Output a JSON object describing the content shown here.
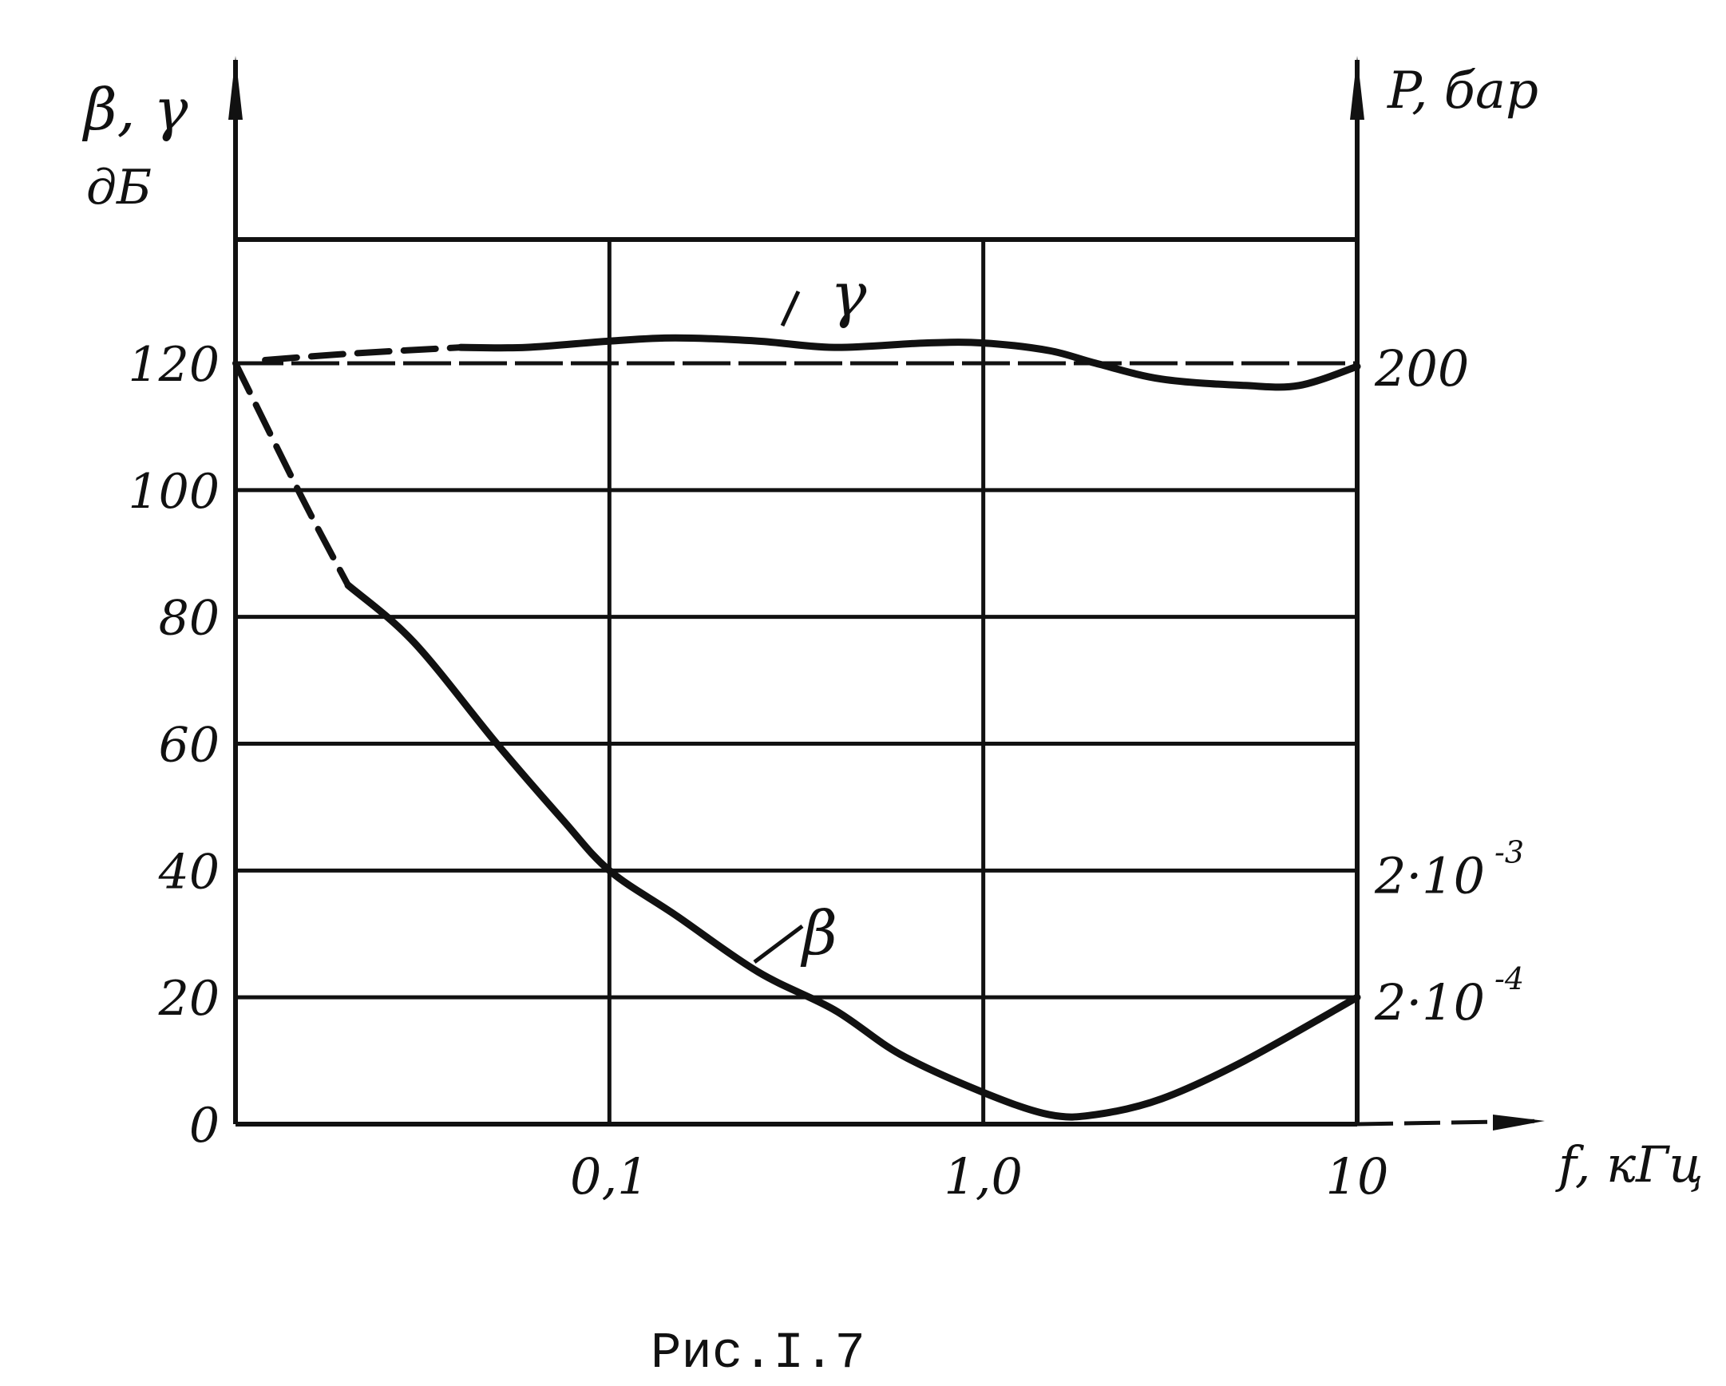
{
  "chart_data": {
    "type": "line",
    "title": "",
    "caption": "Рис.I.7",
    "xlabel": "f, кГц",
    "x_scale": "log",
    "x_ticks": [
      {
        "value": 0.1,
        "label": "0,1"
      },
      {
        "value": 1.0,
        "label": "1,0"
      },
      {
        "value": 10,
        "label": "10"
      }
    ],
    "xlim": [
      0.01,
      10
    ],
    "ylabel_left": {
      "line1": "β, γ",
      "line2": "дБ"
    },
    "ylim_left": [
      0,
      120
    ],
    "y_ticks_left": [
      {
        "value": 0,
        "label": "0"
      },
      {
        "value": 20,
        "label": "20"
      },
      {
        "value": 40,
        "label": "40"
      },
      {
        "value": 60,
        "label": "60"
      },
      {
        "value": 80,
        "label": "80"
      },
      {
        "value": 100,
        "label": "100"
      },
      {
        "value": 120,
        "label": "120"
      }
    ],
    "ylabel_right": "P, бар",
    "y_ticks_right": [
      {
        "at_left_value": 120,
        "label": "200"
      },
      {
        "at_left_value": 40,
        "label": "2·10",
        "sup": "-3"
      },
      {
        "at_left_value": 20,
        "label": "2·10",
        "sup": "-4"
      }
    ],
    "grid": true,
    "series": [
      {
        "name": "γ",
        "color": "#111111",
        "dashed_until_x": 0.04,
        "points": [
          [
            0.012,
            120.5
          ],
          [
            0.02,
            121.5
          ],
          [
            0.04,
            122.5
          ],
          [
            0.06,
            122.5
          ],
          [
            0.1,
            123.5
          ],
          [
            0.15,
            124.0
          ],
          [
            0.25,
            123.5
          ],
          [
            0.4,
            122.5
          ],
          [
            0.7,
            123.2
          ],
          [
            1.0,
            123.2
          ],
          [
            1.5,
            122.0
          ],
          [
            2.0,
            120.0
          ],
          [
            3.0,
            117.5
          ],
          [
            5.0,
            116.5
          ],
          [
            7.0,
            116.5
          ],
          [
            10.0,
            119.5
          ]
        ]
      },
      {
        "name": "β",
        "color": "#111111",
        "dashed_until_x": 0.02,
        "points": [
          [
            0.01,
            120
          ],
          [
            0.015,
            99
          ],
          [
            0.02,
            85
          ],
          [
            0.03,
            76
          ],
          [
            0.05,
            60
          ],
          [
            0.075,
            48
          ],
          [
            0.1,
            40
          ],
          [
            0.15,
            33
          ],
          [
            0.25,
            24
          ],
          [
            0.4,
            18
          ],
          [
            0.6,
            11
          ],
          [
            1.0,
            5
          ],
          [
            1.5,
            1.5
          ],
          [
            2.0,
            1.5
          ],
          [
            3.0,
            4
          ],
          [
            5.0,
            10
          ],
          [
            10.0,
            20
          ]
        ]
      }
    ]
  }
}
